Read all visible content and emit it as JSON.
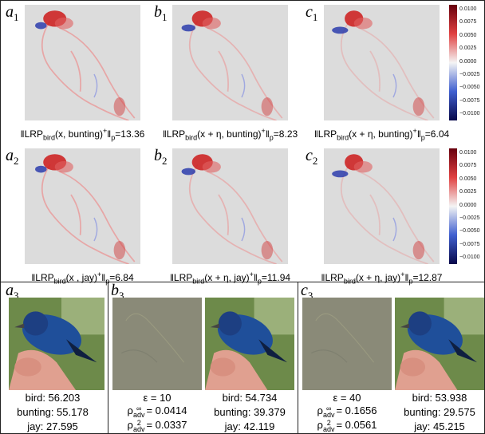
{
  "rows": [
    {
      "panels": [
        {
          "label": {
            "letter": "a",
            "index": "1"
          },
          "caption": [
            "‖LRP",
            "bird",
            "(x, bunting)",
            "+",
            "‖",
            "p",
            "=13.36"
          ]
        },
        {
          "label": {
            "letter": "b",
            "index": "1"
          },
          "caption": [
            "‖LRP",
            "bird",
            "(x + η, bunting)",
            "+",
            "‖",
            "p",
            "=8.23"
          ]
        },
        {
          "label": {
            "letter": "c",
            "index": "1"
          },
          "caption": [
            "‖LRP",
            "bird",
            "(x + η, bunting)",
            "+",
            "‖",
            "p",
            "=6.04"
          ]
        }
      ],
      "colorbar": [
        "0.0100",
        "0.0075",
        "0.0050",
        "0.0025",
        "0.0000",
        "−0.0025",
        "−0.0050",
        "−0.0075",
        "−0.0100"
      ]
    },
    {
      "panels": [
        {
          "label": {
            "letter": "a",
            "index": "2"
          },
          "caption": [
            "‖LRP",
            "bird",
            "(x , jay)",
            "+",
            "‖",
            "p",
            "=6.84"
          ]
        },
        {
          "label": {
            "letter": "b",
            "index": "2"
          },
          "caption": [
            "‖LRP",
            "bird",
            "(x + η, jay)",
            "+",
            "‖",
            "p",
            "=11.94"
          ]
        },
        {
          "label": {
            "letter": "c",
            "index": "2"
          },
          "caption": [
            "‖LRP",
            "bird",
            "(x + η, jay)",
            "+",
            "‖",
            "p",
            "=12.87"
          ]
        }
      ],
      "colorbar": [
        "0.0100",
        "0.0075",
        "0.0050",
        "0.0025",
        "0.0000",
        "−0.0025",
        "−0.0050",
        "−0.0075",
        "−0.0100"
      ]
    }
  ],
  "bottom": [
    {
      "label": {
        "letter": "a",
        "index": "3"
      },
      "scores": [
        "bird: 56.203",
        "bunting: 55.178",
        "jay: 27.595"
      ]
    },
    {
      "label": {
        "letter": "b",
        "index": "3"
      },
      "epsilon": "ε = 10",
      "rho": [
        [
          "ρ",
          "∞",
          "adv",
          "= 0.0414"
        ],
        [
          "ρ",
          "2",
          "adv",
          "= 0.0337"
        ]
      ],
      "scores": [
        "bird: 54.734",
        "bunting: 39.379",
        "jay: 42.119"
      ]
    },
    {
      "label": {
        "letter": "c",
        "index": "3"
      },
      "epsilon": "ε = 40",
      "rho": [
        [
          "ρ",
          "∞",
          "adv",
          "= 0.1656"
        ],
        [
          "ρ",
          "2",
          "adv",
          "= 0.0561"
        ]
      ],
      "scores": [
        "bird: 53.938",
        "bunting:  29.575",
        "jay: 45.215"
      ]
    }
  ]
}
